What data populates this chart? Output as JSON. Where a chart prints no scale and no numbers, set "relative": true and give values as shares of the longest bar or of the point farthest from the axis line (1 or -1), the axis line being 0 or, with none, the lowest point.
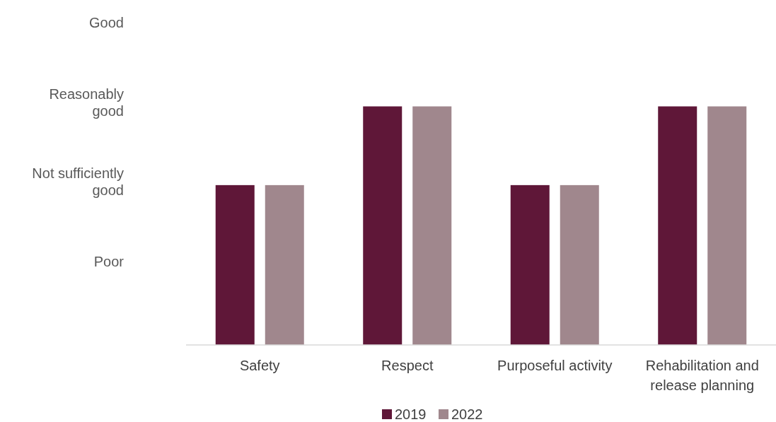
{
  "chart_data": {
    "type": "bar",
    "categories": [
      "Safety",
      "Respect",
      "Purposeful activity",
      "Rehabilitation and release planning"
    ],
    "relative": true,
    "series": [
      {
        "name": "2019",
        "color": "#5f1738",
        "values": [
          0.67,
          1,
          0.67,
          1
        ]
      },
      {
        "name": "2022",
        "color": "#a0878d",
        "values": [
          0.67,
          1,
          0.67,
          1
        ]
      }
    ],
    "annotations": [
      "Poor",
      "Not sufficiently good",
      "Reasonably good",
      "Good"
    ],
    "grid": false,
    "legend": "bottom"
  }
}
